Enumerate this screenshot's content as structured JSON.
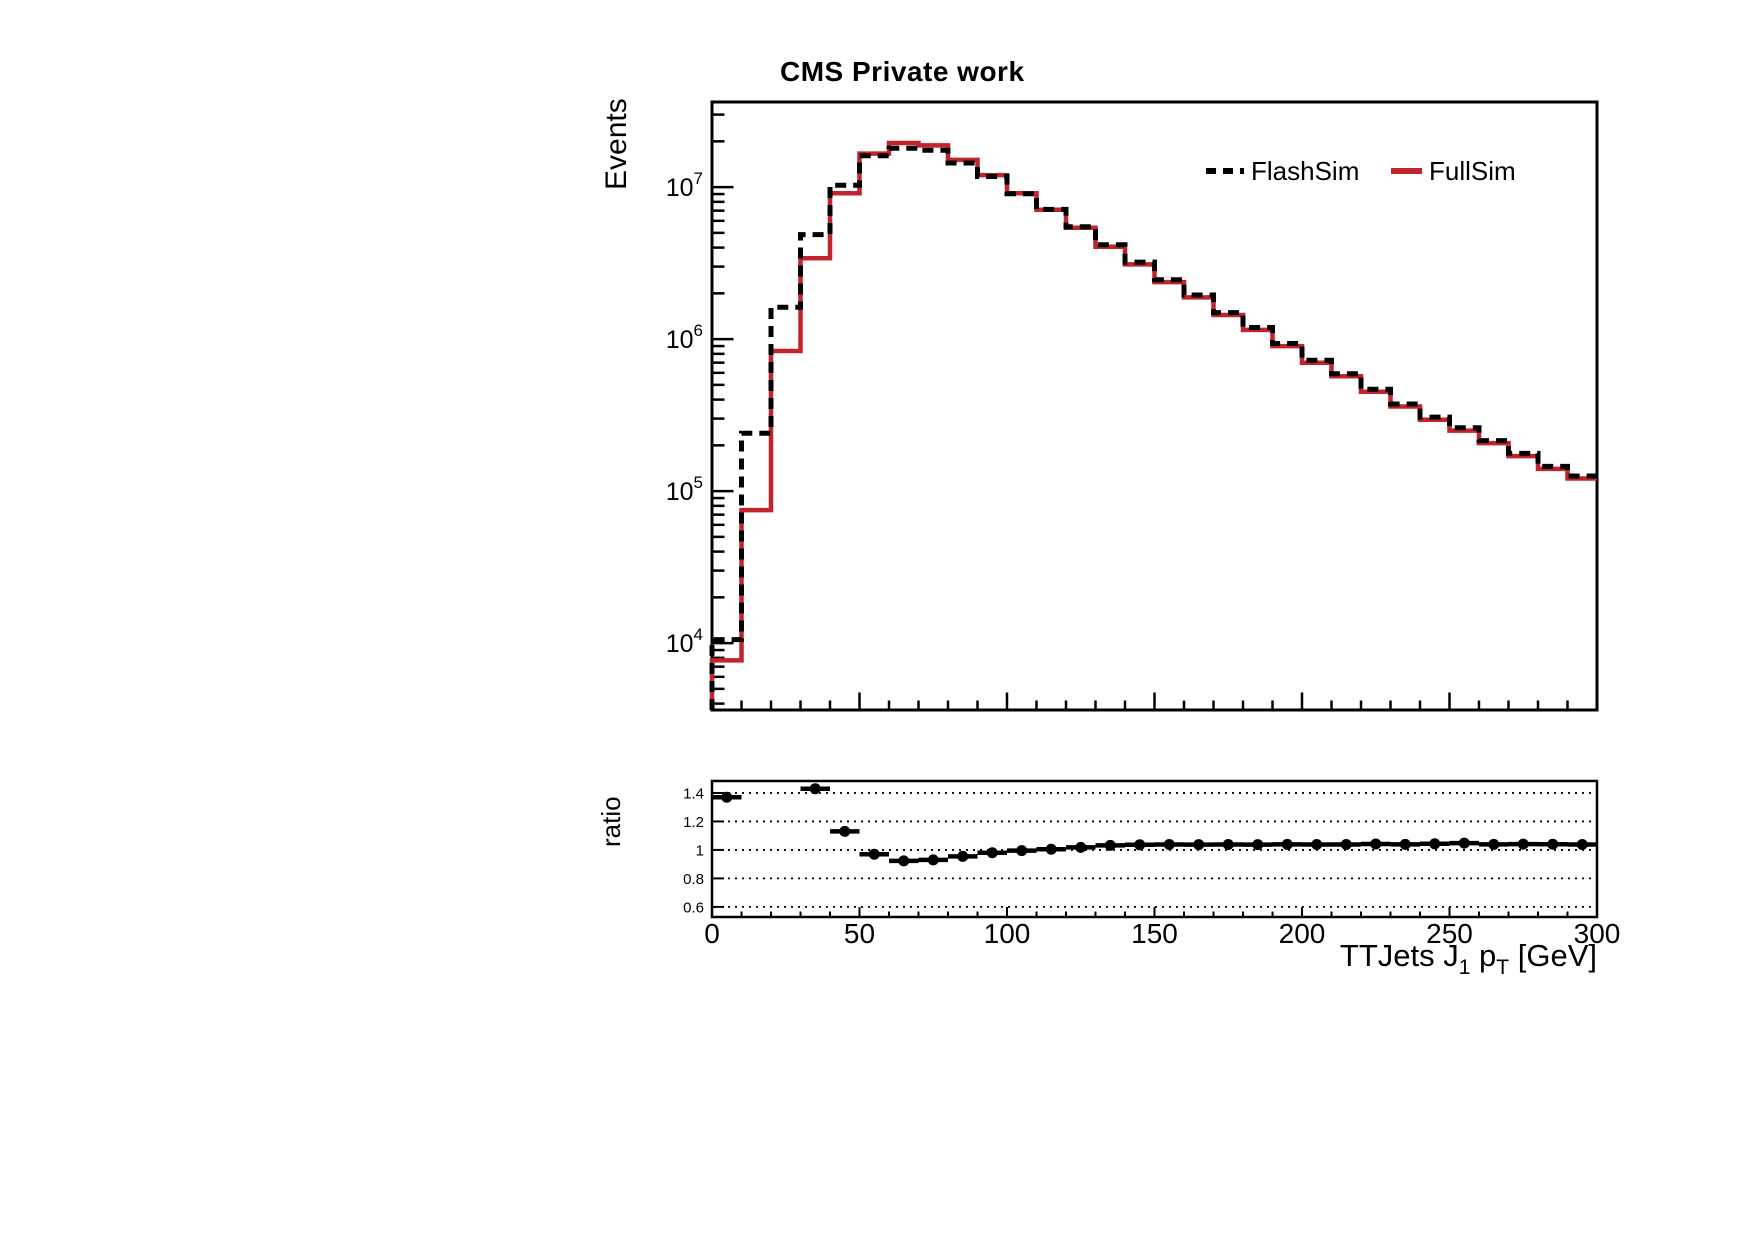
{
  "plot": {
    "title": "CMS Private work",
    "main_panel": {
      "y_axis_label": "Events",
      "y_scale": "log"
    },
    "ratio_panel": {
      "y_axis_label": "ratio"
    },
    "x_axis_label": {
      "pre": "TTJets J",
      "sub1": "1",
      "mid": " p",
      "sub2": "T",
      "post": " [GeV]",
      "plain": "TTJets J1 pT [GeV]"
    },
    "legend": {
      "items": [
        {
          "label": "FlashSim",
          "style": "dashed-black"
        },
        {
          "label": "FullSim",
          "style": "solid-red"
        }
      ]
    },
    "colors": {
      "flashsim": "#000000",
      "fullsim": "#c2242c",
      "frame": "#000000"
    }
  },
  "chart_data": [
    {
      "type": "line",
      "subtype": "step-histogram",
      "title": "CMS Private work",
      "xlabel": "TTJets J1 pT [GeV]",
      "ylabel": "Events",
      "yscale": "log",
      "xlim": [
        0,
        300
      ],
      "ylim": [
        3630,
        36300000
      ],
      "bin_width": 10,
      "bin_start": 0,
      "bin_count": 30,
      "y_tick_exponents": [
        4,
        5,
        6,
        7
      ],
      "x_minor_tick_step": 10,
      "x_major_tick_step": 50,
      "legend_position": "top-right-inside",
      "grid": "off",
      "series": [
        {
          "name": "FlashSim",
          "color": "#000000",
          "line_style": "dashed",
          "values": [
            10550,
            240000,
            1620000,
            4870000,
            10300000,
            16100000,
            18000000,
            17500000,
            14400000,
            11750000,
            9050000,
            7130000,
            5480000,
            4180000,
            3210000,
            2460000,
            1950000,
            1495000,
            1193000,
            935000,
            727000,
            592000,
            468000,
            374000,
            307000,
            261000,
            215000,
            177000,
            145500,
            125800
          ]
        },
        {
          "name": "FullSim",
          "color": "#c2242c",
          "line_style": "solid",
          "values": [
            7700,
            75000,
            835000,
            3400000,
            9100000,
            16600000,
            19500000,
            18800000,
            15100000,
            12000000,
            9100000,
            7100000,
            5400000,
            4050000,
            3100000,
            2370000,
            1880000,
            1440000,
            1150000,
            900000,
            700000,
            570000,
            450000,
            360000,
            295000,
            250000,
            207000,
            170000,
            140000,
            121000
          ]
        }
      ]
    },
    {
      "type": "scatter",
      "subtype": "ratio-panel",
      "ylabel": "ratio",
      "xlabel": "TTJets J1 pT [GeV]",
      "xlim": [
        0,
        300
      ],
      "ylim": [
        0.529,
        1.484
      ],
      "grid": "horizontal-dotted",
      "marker": "filled-circle-with-xerr",
      "xerr": 5,
      "y_ticks": [
        {
          "value": 1.4,
          "label": "1.4"
        },
        {
          "value": 1.2,
          "label": "1.2"
        },
        {
          "value": 1.0,
          "label": "1"
        },
        {
          "value": 0.8,
          "label": "0.8"
        },
        {
          "value": 0.6,
          "label": "0.6"
        }
      ],
      "x_ticks": [
        {
          "value": 0,
          "label": "0"
        },
        {
          "value": 50,
          "label": "50"
        },
        {
          "value": 100,
          "label": "100"
        },
        {
          "value": 150,
          "label": "150"
        },
        {
          "value": 200,
          "label": "200"
        },
        {
          "value": 250,
          "label": "250"
        },
        {
          "value": 300,
          "label": "300"
        }
      ],
      "points": [
        {
          "x": 5,
          "y": 1.37
        },
        {
          "x": 35,
          "y": 1.43
        },
        {
          "x": 45,
          "y": 1.13
        },
        {
          "x": 55,
          "y": 0.97
        },
        {
          "x": 65,
          "y": 0.923
        },
        {
          "x": 75,
          "y": 0.93
        },
        {
          "x": 85,
          "y": 0.955
        },
        {
          "x": 95,
          "y": 0.98
        },
        {
          "x": 105,
          "y": 0.995
        },
        {
          "x": 115,
          "y": 1.005
        },
        {
          "x": 125,
          "y": 1.018
        },
        {
          "x": 135,
          "y": 1.032
        },
        {
          "x": 145,
          "y": 1.036
        },
        {
          "x": 155,
          "y": 1.038
        },
        {
          "x": 165,
          "y": 1.037
        },
        {
          "x": 175,
          "y": 1.038
        },
        {
          "x": 185,
          "y": 1.037
        },
        {
          "x": 195,
          "y": 1.039
        },
        {
          "x": 205,
          "y": 1.038
        },
        {
          "x": 215,
          "y": 1.038
        },
        {
          "x": 225,
          "y": 1.042
        },
        {
          "x": 235,
          "y": 1.039
        },
        {
          "x": 245,
          "y": 1.043
        },
        {
          "x": 255,
          "y": 1.048
        },
        {
          "x": 265,
          "y": 1.039
        },
        {
          "x": 275,
          "y": 1.041
        },
        {
          "x": 285,
          "y": 1.04
        },
        {
          "x": 295,
          "y": 1.038
        }
      ]
    }
  ]
}
